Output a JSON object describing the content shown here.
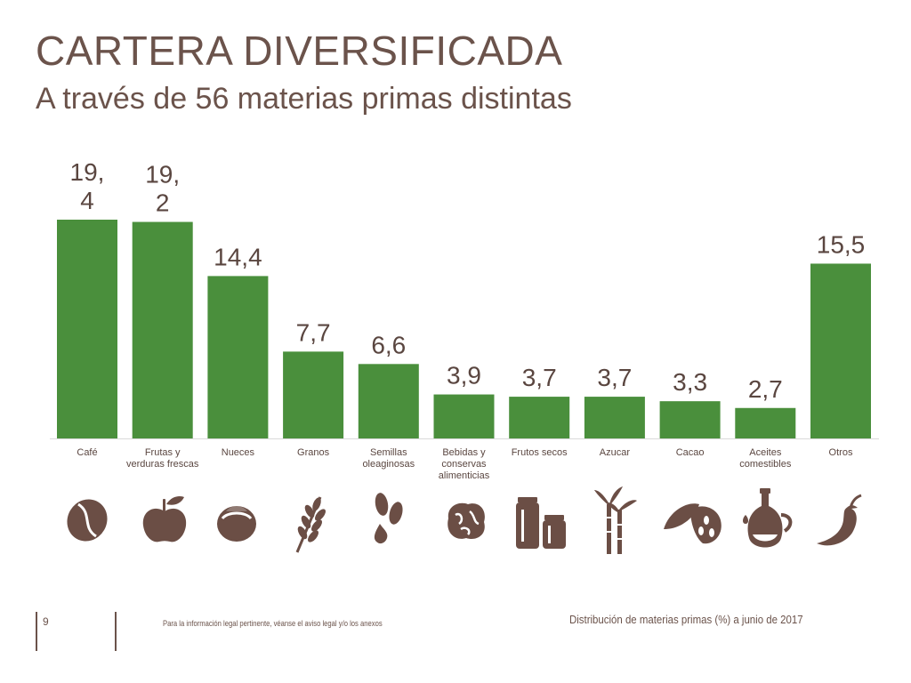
{
  "header": {
    "title": "CARTERA DIVERSIFICADA",
    "subtitle": "A través de 56 materias primas distintas"
  },
  "footer": {
    "page_number": "9",
    "legal_note": "Para la información legal pertinente, véanse el aviso legal y/o los anexos",
    "caption": "Distribución de materias primas (%) a junio de 2017"
  },
  "colors": {
    "bar": "#4a8f3c",
    "text": "#5a4640",
    "icon": "#6b4e45"
  },
  "icons": [
    "coffee-bean-icon",
    "apple-icon",
    "hazelnut-icon",
    "wheat-icon",
    "seeds-oil-drop-icon",
    "walnut-icon",
    "jars-icon",
    "sugarcane-icon",
    "cacao-pod-icon",
    "oil-bottle-icon",
    "chili-pepper-icon"
  ],
  "chart_data": {
    "type": "bar",
    "categories": [
      "Café",
      "Frutas y\nverduras frescas",
      "Nueces",
      "Granos",
      "Semillas\noleaginosas",
      "Bebidas y\nconservas\nalimenticias",
      "Frutos secos",
      "Azucar",
      "Cacao",
      "Aceites\ncomestibles",
      "Otros"
    ],
    "values": [
      19.4,
      19.2,
      14.4,
      7.7,
      6.6,
      3.9,
      3.7,
      3.7,
      3.3,
      2.7,
      15.5
    ],
    "data_labels": [
      "19,\n4",
      "19,\n2",
      "14,4",
      "7,7",
      "6,6",
      "3,9",
      "3,7",
      "3,7",
      "3,3",
      "2,7",
      "15,5"
    ],
    "title": "",
    "xlabel": "",
    "ylabel": "",
    "ylim": [
      0,
      19.4
    ],
    "grid": false,
    "legend": "none"
  }
}
